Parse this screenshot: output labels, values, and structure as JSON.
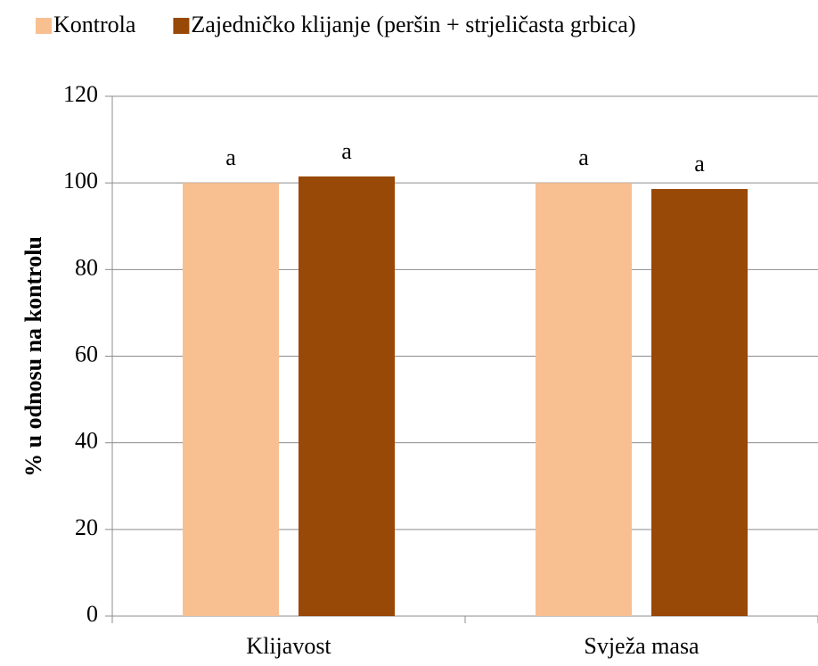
{
  "chart_data": {
    "type": "bar",
    "categories": [
      "Klijavost",
      "Svježa masa"
    ],
    "series": [
      {
        "name": "Kontrola",
        "color": "#f8c090",
        "values": [
          100,
          100
        ],
        "labels": [
          "a",
          "a"
        ]
      },
      {
        "name": "Zajedničko klijanje (peršin + strjeličasta grbica)",
        "color": "#984807",
        "values": [
          101.5,
          98.6
        ],
        "labels": [
          "a",
          "a"
        ]
      }
    ],
    "ylabel": "% u odnosu na kontrolu",
    "ylim": [
      0,
      120
    ],
    "yticks": [
      0,
      20,
      40,
      60,
      80,
      100,
      120
    ],
    "grid": true,
    "legend": "top"
  }
}
